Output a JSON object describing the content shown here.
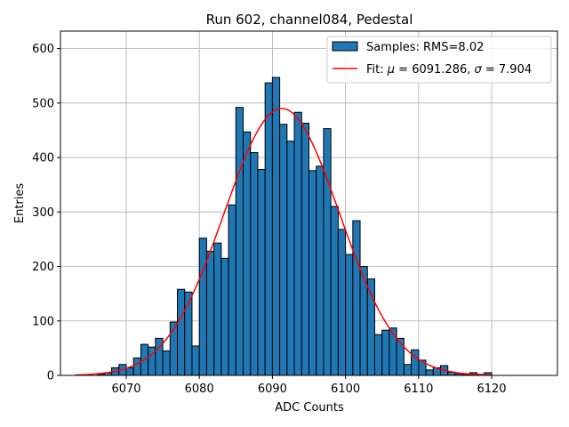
{
  "chart_data": {
    "type": "bar",
    "title": "Run 602, channel084, Pedestal",
    "xlabel": "ADC Counts",
    "ylabel": "Entries",
    "xlim": [
      6061,
      6129
    ],
    "ylim": [
      0,
      632
    ],
    "xticks": [
      6070,
      6080,
      6090,
      6100,
      6110,
      6120
    ],
    "yticks": [
      0,
      100,
      200,
      300,
      400,
      500,
      600
    ],
    "grid": true,
    "legend_position": "top-right",
    "bin_width": 1,
    "bins": [
      {
        "x": 6066,
        "y": 2
      },
      {
        "x": 6067,
        "y": 5
      },
      {
        "x": 6068,
        "y": 14
      },
      {
        "x": 6069,
        "y": 20
      },
      {
        "x": 6070,
        "y": 14
      },
      {
        "x": 6071,
        "y": 32
      },
      {
        "x": 6072,
        "y": 57
      },
      {
        "x": 6073,
        "y": 52
      },
      {
        "x": 6074,
        "y": 68
      },
      {
        "x": 6075,
        "y": 45
      },
      {
        "x": 6076,
        "y": 98
      },
      {
        "x": 6077,
        "y": 158
      },
      {
        "x": 6078,
        "y": 153
      },
      {
        "x": 6079,
        "y": 54
      },
      {
        "x": 6080,
        "y": 252
      },
      {
        "x": 6081,
        "y": 228
      },
      {
        "x": 6082,
        "y": 243
      },
      {
        "x": 6083,
        "y": 215
      },
      {
        "x": 6084,
        "y": 313
      },
      {
        "x": 6085,
        "y": 492
      },
      {
        "x": 6086,
        "y": 447
      },
      {
        "x": 6087,
        "y": 409
      },
      {
        "x": 6088,
        "y": 378
      },
      {
        "x": 6089,
        "y": 537
      },
      {
        "x": 6090,
        "y": 547
      },
      {
        "x": 6091,
        "y": 461
      },
      {
        "x": 6092,
        "y": 430
      },
      {
        "x": 6093,
        "y": 483
      },
      {
        "x": 6094,
        "y": 463
      },
      {
        "x": 6095,
        "y": 376
      },
      {
        "x": 6096,
        "y": 384
      },
      {
        "x": 6097,
        "y": 453
      },
      {
        "x": 6098,
        "y": 310
      },
      {
        "x": 6099,
        "y": 268
      },
      {
        "x": 6100,
        "y": 222
      },
      {
        "x": 6101,
        "y": 284
      },
      {
        "x": 6102,
        "y": 200
      },
      {
        "x": 6103,
        "y": 177
      },
      {
        "x": 6104,
        "y": 75
      },
      {
        "x": 6105,
        "y": 83
      },
      {
        "x": 6106,
        "y": 87
      },
      {
        "x": 6107,
        "y": 68
      },
      {
        "x": 6108,
        "y": 20
      },
      {
        "x": 6109,
        "y": 47
      },
      {
        "x": 6110,
        "y": 28
      },
      {
        "x": 6111,
        "y": 10
      },
      {
        "x": 6112,
        "y": 14
      },
      {
        "x": 6113,
        "y": 18
      },
      {
        "x": 6114,
        "y": 6
      },
      {
        "x": 6115,
        "y": 3
      },
      {
        "x": 6116,
        "y": 2
      },
      {
        "x": 6117,
        "y": 5
      },
      {
        "x": 6118,
        "y": 2
      },
      {
        "x": 6119,
        "y": 5
      }
    ],
    "fit": {
      "mu": 6091.286,
      "sigma": 7.904,
      "amplitude": 490,
      "x_range": [
        6063,
        6120
      ]
    },
    "series": [
      {
        "name": "Samples: RMS=8.02",
        "kind": "histogram",
        "color": "#1f77b4",
        "edgecolor": "#000000"
      },
      {
        "name": "Fit: μ = 6091.286, σ = 7.904",
        "kind": "line",
        "color": "#ff0000"
      }
    ],
    "legend": {
      "samples_label": "Samples: RMS=8.02",
      "fit_label_prefix": "Fit: ",
      "fit_mu_symbol": "μ",
      "fit_mu_value": " = 6091.286, ",
      "fit_sigma_symbol": "σ",
      "fit_sigma_value": " = 7.904"
    }
  }
}
